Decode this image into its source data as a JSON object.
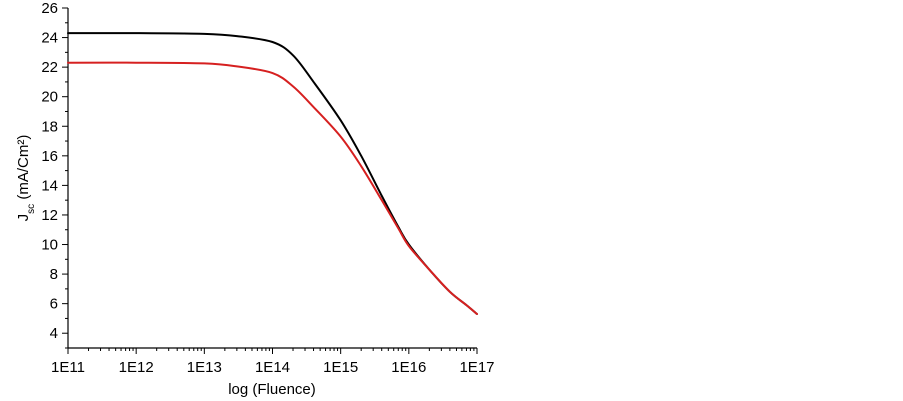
{
  "chart_data": {
    "type": "line",
    "xlabel": "log (Fluence)",
    "ylabel": {
      "main": "J",
      "sub": "sc",
      "rest": " (mA/Cm²)"
    },
    "xscale": "log",
    "xlim": [
      100000000000.0,
      1e+17
    ],
    "ylim": [
      3,
      26
    ],
    "x_ticks": [
      100000000000.0,
      1000000000000.0,
      10000000000000.0,
      100000000000000.0,
      1000000000000000.0,
      1e+16,
      1e+17
    ],
    "x_tick_labels": [
      "1E11",
      "1E12",
      "1E13",
      "1E14",
      "1E15",
      "1E16",
      "1E17"
    ],
    "y_ticks": [
      4,
      6,
      8,
      10,
      12,
      14,
      16,
      18,
      20,
      22,
      24,
      26
    ],
    "y_tick_labels": [
      "4",
      "6",
      "8",
      "10",
      "12",
      "14",
      "16",
      "18",
      "20",
      "22",
      "24",
      "26"
    ],
    "grid": false,
    "legend": "none",
    "x": [
      100000000000.0,
      1000000000000.0,
      10000000000000.0,
      30000000000000.0,
      100000000000000.0,
      200000000000000.0,
      400000000000000.0,
      1000000000000000.0,
      2000000000000000.0,
      4000000000000000.0,
      7000000000000000.0,
      1e+16,
      2e+16,
      4e+16,
      7e+16,
      1e+17
    ],
    "series": [
      {
        "color": "#000000",
        "values": [
          24.3,
          24.3,
          24.25,
          24.1,
          23.7,
          22.8,
          21.0,
          18.4,
          16.0,
          13.3,
          11.2,
          10.0,
          8.3,
          6.8,
          5.9,
          5.3
        ]
      },
      {
        "color": "#d62020",
        "values": [
          22.3,
          22.3,
          22.25,
          22.05,
          21.6,
          20.7,
          19.3,
          17.3,
          15.3,
          13.0,
          11.1,
          9.9,
          8.3,
          6.8,
          5.9,
          5.3
        ]
      }
    ]
  }
}
